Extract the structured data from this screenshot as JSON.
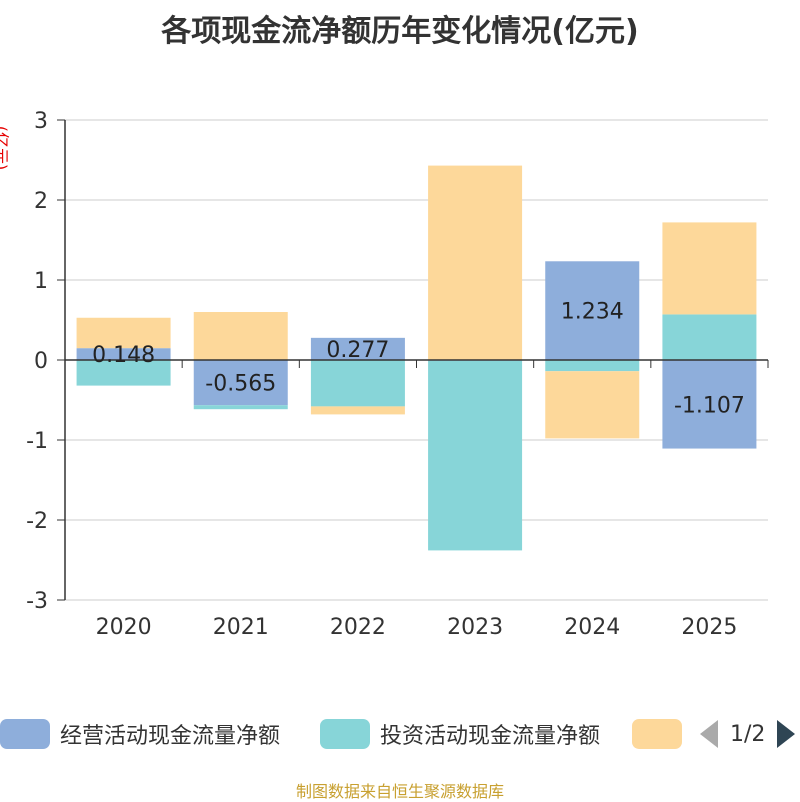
{
  "chart_data": {
    "type": "bar",
    "stacked": true,
    "title": "各项现金流净额历年变化情况(亿元)",
    "ylabel": "(亿元)",
    "ylim": [
      -3,
      3
    ],
    "yticks": [
      -3,
      -2,
      -1,
      0,
      1,
      2,
      3
    ],
    "grid": true,
    "legend_position": "bottom",
    "categories": [
      "2020",
      "2021",
      "2022",
      "2023",
      "2024",
      "2025"
    ],
    "series": [
      {
        "name": "经营活动现金流量净额",
        "color": "#8eaedb",
        "values": [
          0.148,
          -0.565,
          0.277,
          -0.01,
          1.234,
          -1.107
        ],
        "labels": [
          "0.148",
          "-0.565",
          "0.277",
          "",
          "1.234",
          "-1.107"
        ]
      },
      {
        "name": "投资活动现金流量净额",
        "color": "#87d5d8",
        "values": [
          -0.32,
          -0.05,
          -0.58,
          -2.37,
          -0.14,
          0.57
        ]
      },
      {
        "name": "",
        "color": "#fdd89a",
        "values": [
          0.38,
          0.6,
          -0.1,
          2.43,
          -0.84,
          1.15
        ]
      }
    ]
  },
  "legend": {
    "items": [
      {
        "label": "经营活动现金流量净额",
        "color": "#8eaedb"
      },
      {
        "label": "投资活动现金流量净额",
        "color": "#87d5d8"
      },
      {
        "label": "",
        "color": "#fdd89a"
      }
    ],
    "page": "1/2"
  },
  "footer": {
    "source": "制图数据来自恒生聚源数据库"
  }
}
